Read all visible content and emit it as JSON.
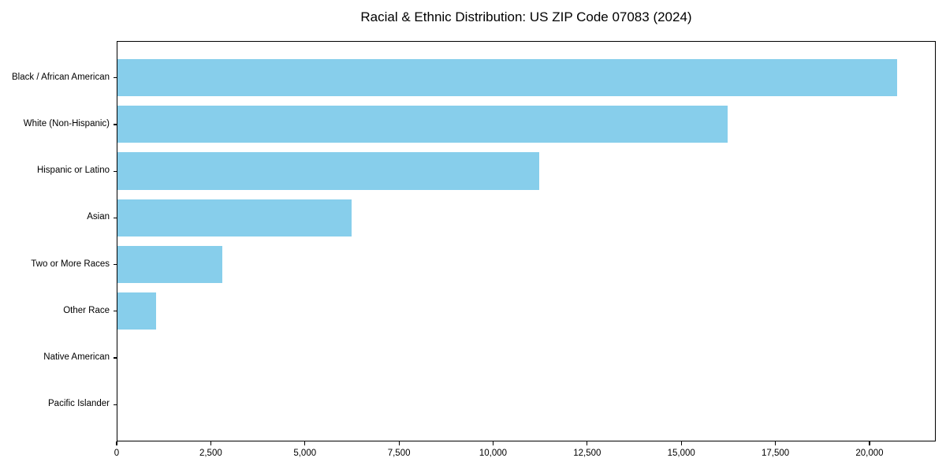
{
  "chart_data": {
    "type": "bar",
    "orientation": "horizontal",
    "title": "Racial & Ethnic Distribution: US ZIP Code 07083 (2024)",
    "xlabel": "",
    "ylabel": "",
    "categories": [
      "Black / African American",
      "White (Non-Hispanic)",
      "Hispanic or Latino",
      "Asian",
      "Two or More Races",
      "Other Race",
      "Native American",
      "Pacific Islander"
    ],
    "values": [
      20720,
      16210,
      11200,
      6220,
      2790,
      1030,
      0,
      0
    ],
    "bar_color": "#87CEEB",
    "axis_color": "#000000",
    "background_color": "#FFFFFF",
    "xlim": [
      0,
      21760
    ],
    "xticks": [
      0,
      2500,
      5000,
      7500,
      10000,
      12500,
      15000,
      17500,
      20000
    ],
    "xtick_labels": [
      "0",
      "2,500",
      "5,000",
      "7,500",
      "10,000",
      "12,500",
      "15,000",
      "17,500",
      "20,000"
    ],
    "grid": false,
    "legend": false
  }
}
